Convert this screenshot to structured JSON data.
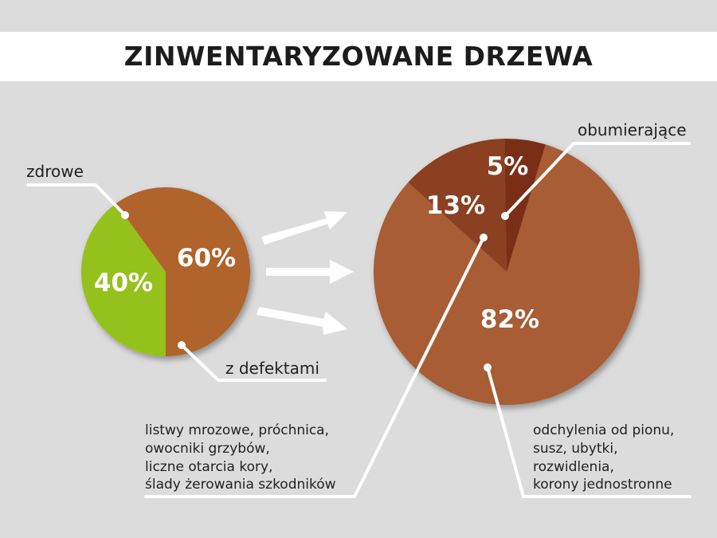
{
  "title": "ZINWENTARYZOWANE DRZEWA",
  "colors": {
    "healthy": "#95c11f",
    "defective": "#b0642b",
    "deviations": "#a85d35",
    "damage": "#8b4020",
    "dying": "#7a2f14",
    "background": "#dcdcdc",
    "title_band": "#ffffff"
  },
  "chart_data": [
    {
      "type": "pie",
      "slices": [
        {
          "label": "zdrowe",
          "value": 40,
          "value_label": "40%"
        },
        {
          "label": "z defektami",
          "value": 60,
          "value_label": "60%"
        }
      ]
    },
    {
      "type": "pie",
      "slices": [
        {
          "label": "odchylenia od pionu, susz, ubytki, rozwidlenia, korony jednostronne",
          "value": 82,
          "value_label": "82%"
        },
        {
          "label": "listwy mrozowe, próchnica, owocniki grzybów, liczne otarcia kory, ślady żerowania szkodników",
          "value": 13,
          "value_label": "13%"
        },
        {
          "label": "obumierające",
          "value": 5,
          "value_label": "5%"
        }
      ]
    }
  ],
  "labels": {
    "healthy": "zdrowe",
    "defective": "z defektami",
    "dying": "obumierające",
    "damage_lines": [
      "listwy mrozowe, próchnica,",
      "owocniki grzybów,",
      "liczne otarcia kory,",
      "ślady żerowania szkodników"
    ],
    "deviation_lines": [
      "odchylenia od pionu,",
      "susz, ubytki,",
      "rozwidlenia,",
      "korony jednostronne"
    ]
  }
}
